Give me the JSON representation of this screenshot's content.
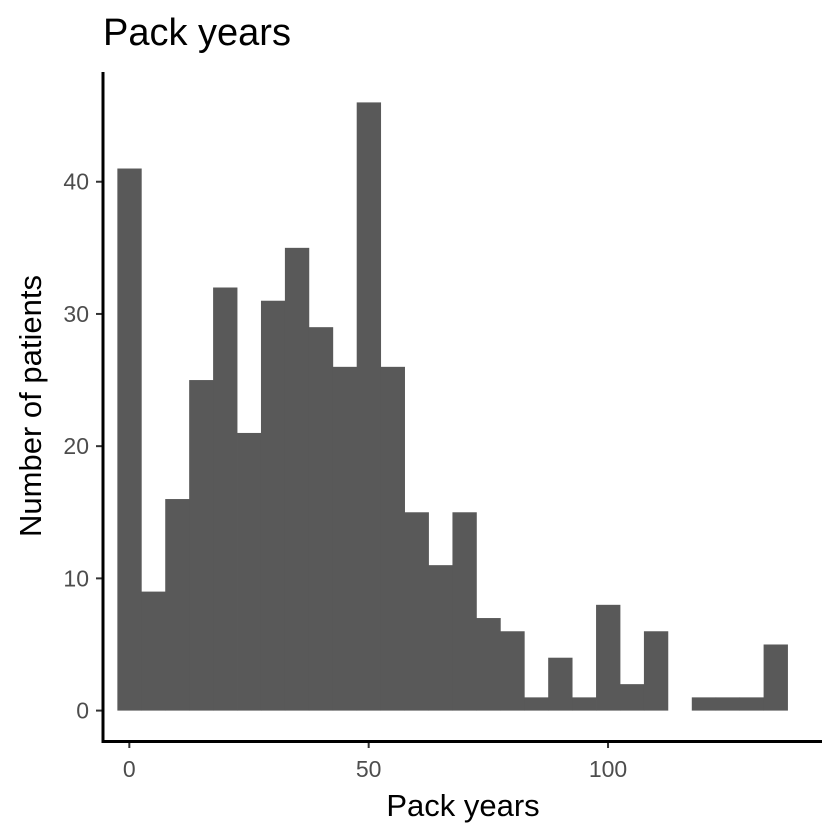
{
  "chart_data": {
    "type": "bar",
    "title": "Pack years",
    "xlabel": "Pack years",
    "ylabel": "Number of patients",
    "bin_width": 5,
    "bin_centers": [
      0,
      5,
      10,
      15,
      20,
      25,
      30,
      35,
      40,
      45,
      50,
      55,
      60,
      65,
      70,
      75,
      80,
      85,
      90,
      95,
      100,
      105,
      110,
      115,
      120,
      125,
      130,
      135
    ],
    "values": [
      41,
      9,
      16,
      25,
      32,
      21,
      31,
      35,
      29,
      26,
      46,
      26,
      15,
      11,
      15,
      7,
      6,
      1,
      4,
      1,
      8,
      2,
      6,
      0,
      1,
      1,
      1,
      5
    ],
    "bar_color": "#595959",
    "x_ticks": [
      0,
      50,
      100
    ],
    "x_tick_labels": [
      "0",
      "50",
      "100"
    ],
    "y_ticks": [
      0,
      10,
      20,
      30,
      40
    ],
    "y_tick_labels": [
      "0",
      "10",
      "20",
      "30",
      "40"
    ],
    "xlim": [
      -5.5,
      144.7
    ],
    "ylim": [
      -2.3,
      48.3
    ],
    "grid": false,
    "legend": "none"
  }
}
